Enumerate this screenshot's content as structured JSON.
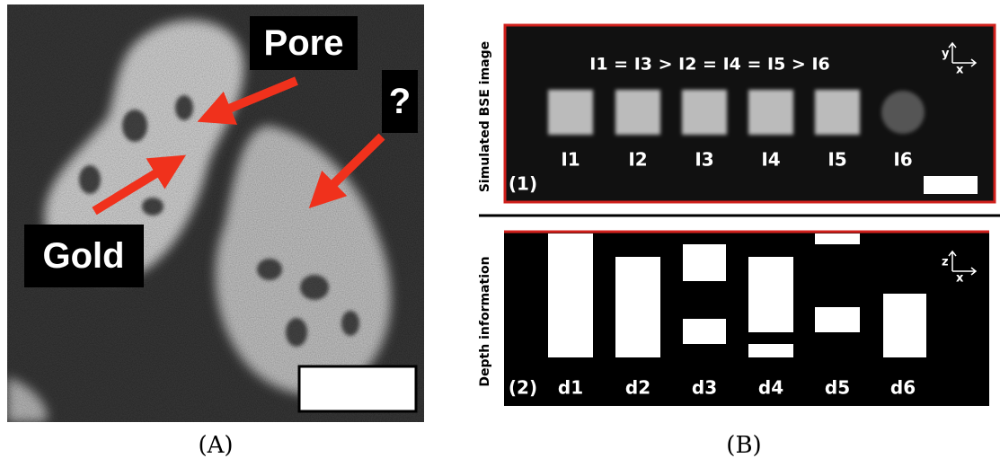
{
  "panel_a": {
    "labels": {
      "pore": "Pore",
      "gold": "Gold",
      "unknown": "?"
    },
    "caption": "(A)"
  },
  "panel_b": {
    "top": {
      "side_label": "Simulated BSE image",
      "equation": "I1 = I3 > I2 = I4 = I5 > I6",
      "items": [
        "I1",
        "I2",
        "I3",
        "I4",
        "I5",
        "I6"
      ],
      "index": "(1)",
      "axes": [
        "y",
        "x"
      ]
    },
    "bottom": {
      "side_label": "Depth information",
      "items": [
        "d1",
        "d2",
        "d3",
        "d4",
        "d5",
        "d6"
      ],
      "index": "(2)",
      "axes": [
        "z",
        "x"
      ]
    },
    "caption": "(B)"
  }
}
